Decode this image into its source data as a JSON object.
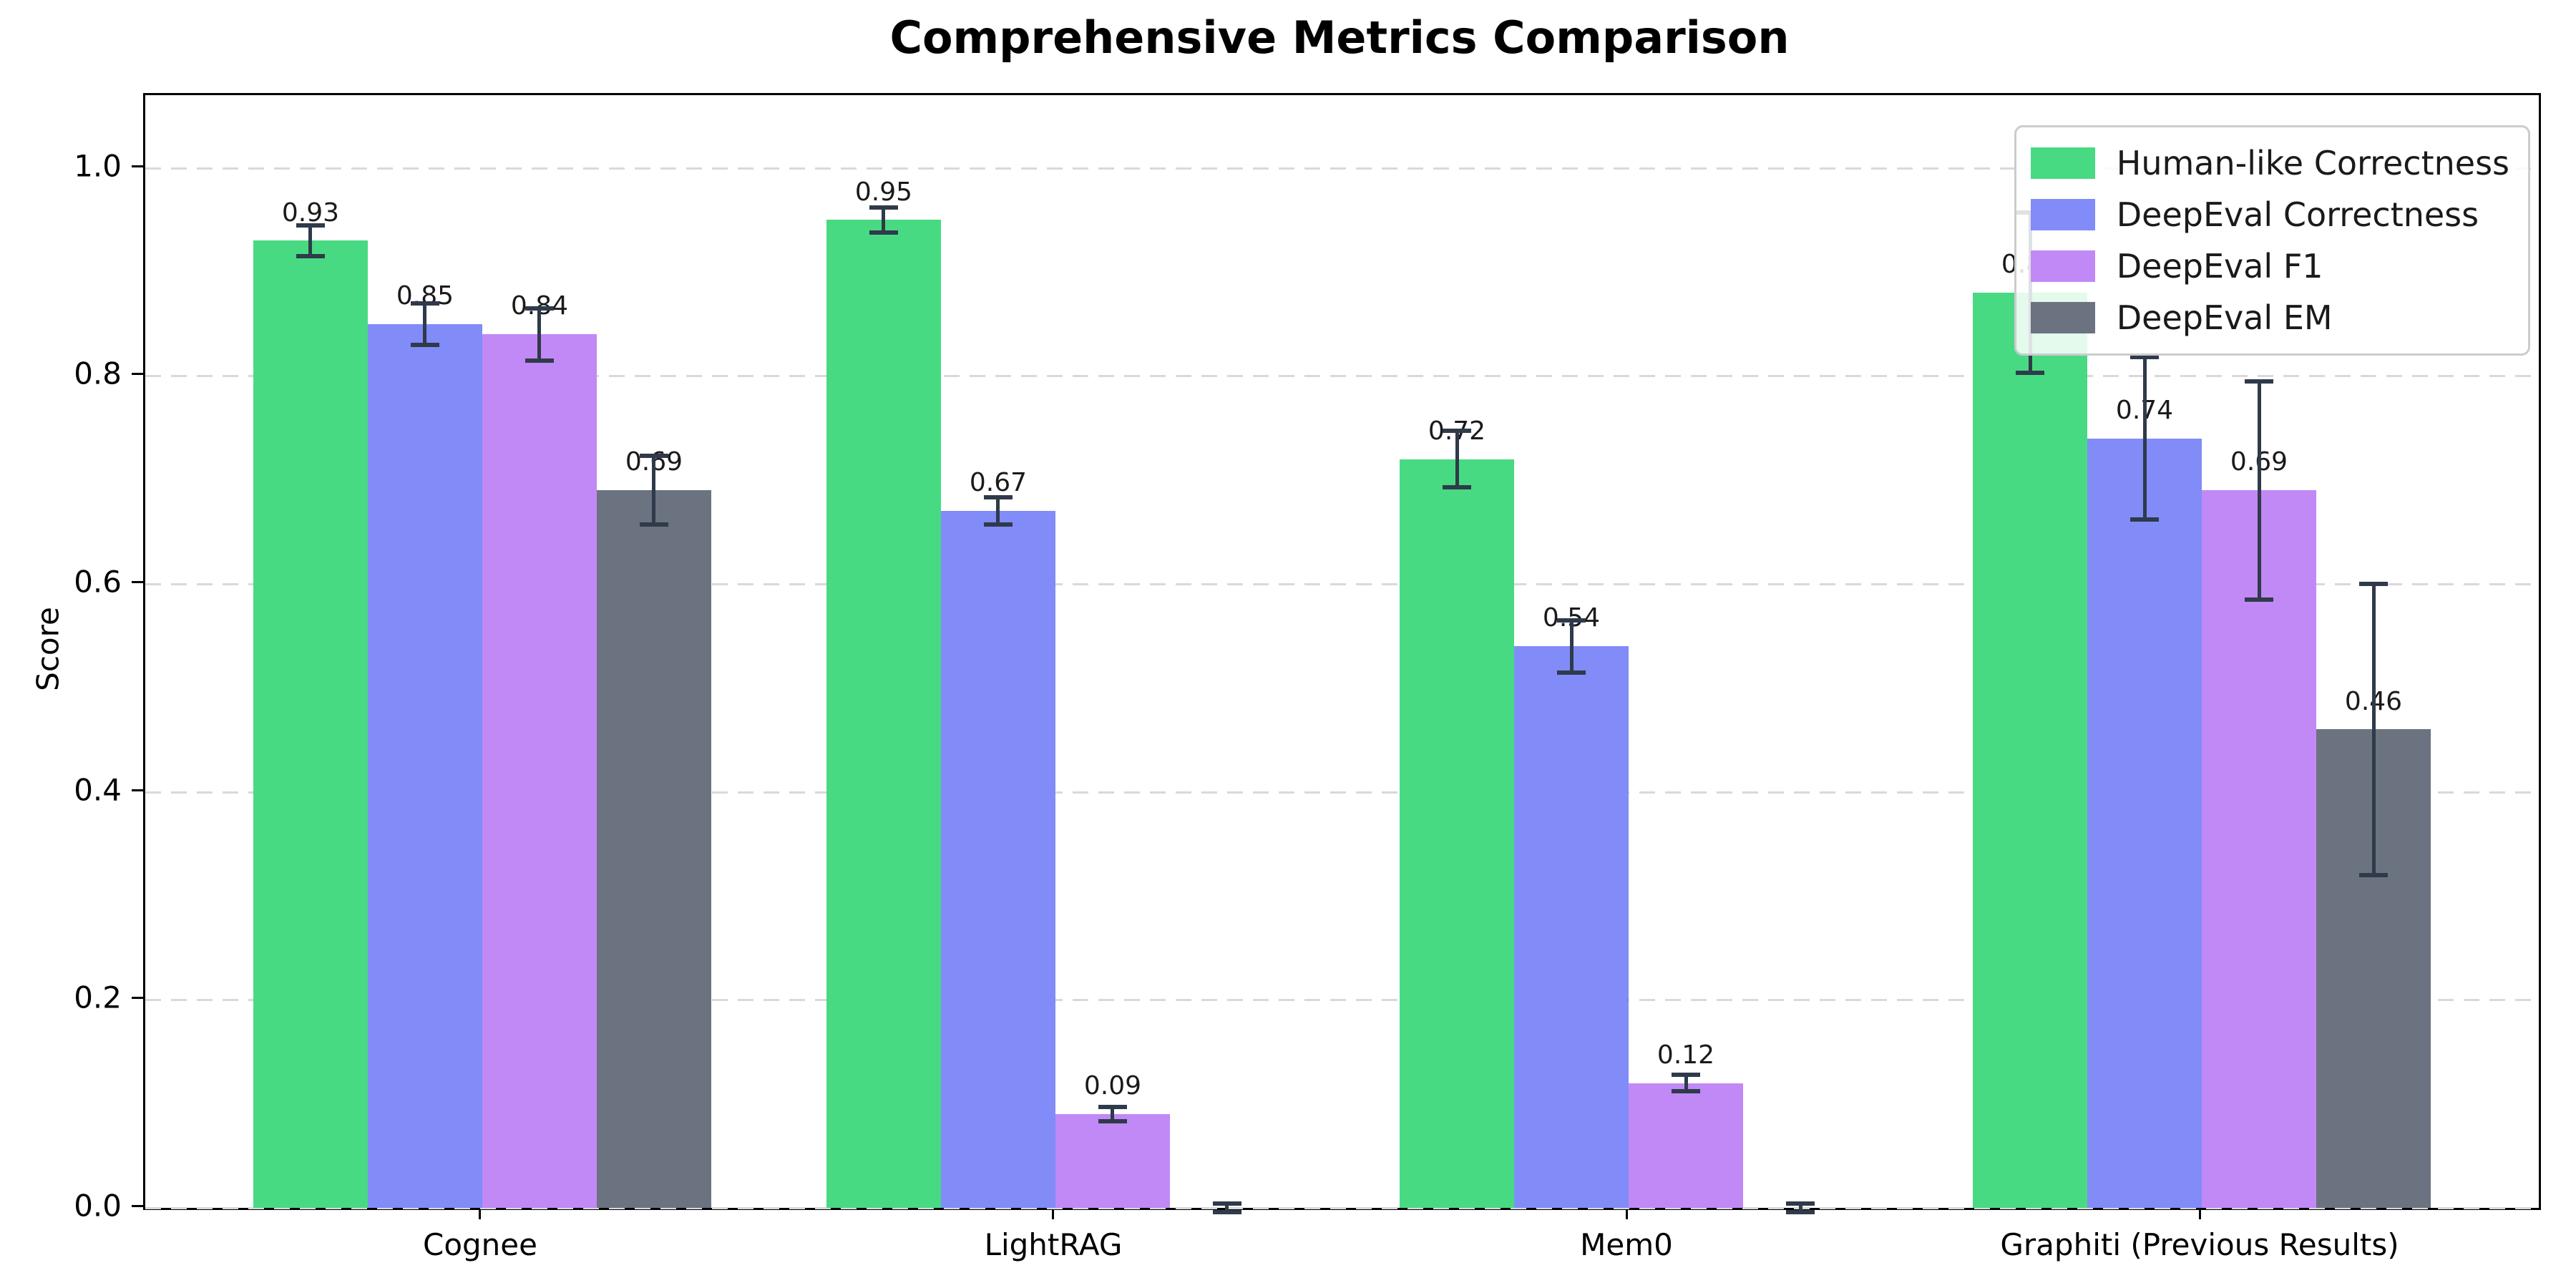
{
  "title": "Comprehensive Metrics Comparison",
  "chart_data": {
    "type": "bar",
    "title": "Comprehensive Metrics Comparison",
    "xlabel": "",
    "ylabel": "Score",
    "categories": [
      "Cognee",
      "LightRAG",
      "Mem0",
      "Graphiti (Previous Results)"
    ],
    "ylim": [
      0,
      1.07
    ],
    "yticks": [
      0.0,
      0.2,
      0.4,
      0.6,
      0.8,
      1.0
    ],
    "ytick_labels": [
      "0.0",
      "0.2",
      "0.4",
      "0.6",
      "0.8",
      "1.0"
    ],
    "grid": "horizontal-dashed",
    "legend_position": "upper right",
    "error_bar_color": "#2f3a4a",
    "series": [
      {
        "name": "Human-like Correctness",
        "color": "#48da82",
        "values": [
          0.93,
          0.95,
          0.72,
          0.88
        ],
        "errors": [
          0.015,
          0.012,
          0.027,
          0.077
        ],
        "labels": [
          "0.93",
          "0.95",
          "0.72",
          "0.88"
        ]
      },
      {
        "name": "DeepEval Correctness",
        "color": "#818cf8",
        "values": [
          0.85,
          0.67,
          0.54,
          0.74
        ],
        "errors": [
          0.02,
          0.013,
          0.025,
          0.078
        ],
        "labels": [
          "0.85",
          "0.67",
          "0.54",
          "0.74"
        ]
      },
      {
        "name": "DeepEval F1",
        "color": "#c189f5",
        "values": [
          0.84,
          0.09,
          0.12,
          0.69
        ],
        "errors": [
          0.025,
          0.007,
          0.008,
          0.105
        ],
        "labels": [
          "0.84",
          "0.09",
          "0.12",
          "0.69"
        ]
      },
      {
        "name": "DeepEval EM",
        "color": "#6b7280",
        "values": [
          0.69,
          0.0,
          0.0,
          0.46
        ],
        "errors": [
          0.033,
          0.004,
          0.004,
          0.14
        ],
        "labels": [
          "0.69",
          "",
          "",
          "0.46"
        ]
      }
    ]
  }
}
